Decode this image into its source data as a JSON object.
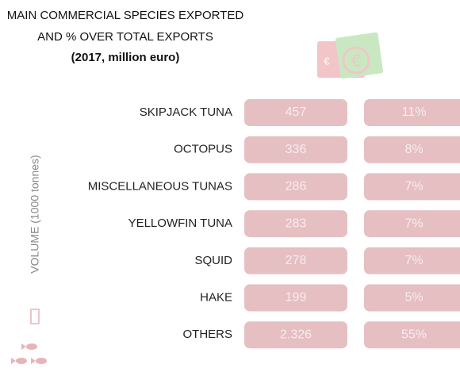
{
  "title": {
    "line1": "MAIN  COMMERCIAL SPECIES EXPORTED",
    "line2": "AND % OVER TOTAL EXPORTS",
    "line3": "(2017, million euro)"
  },
  "side_label": "VOLUME   (1000 tonnes)",
  "table": {
    "rows": [
      {
        "name": "SKIPJACK TUNA",
        "value": "457",
        "share": "11%"
      },
      {
        "name": "OCTOPUS",
        "value": "336",
        "share": "8%"
      },
      {
        "name": "MISCELLANEOUS TUNAS",
        "value": "286",
        "share": "7%"
      },
      {
        "name": "YELLOWFIN TUNA",
        "value": "283",
        "share": "7%"
      },
      {
        "name": "SQUID",
        "value": "278",
        "share": "7%"
      },
      {
        "name": "HAKE",
        "value": "199",
        "share": "5%"
      },
      {
        "name": "OTHERS",
        "value": "2.326",
        "share": "55%"
      }
    ]
  }
}
